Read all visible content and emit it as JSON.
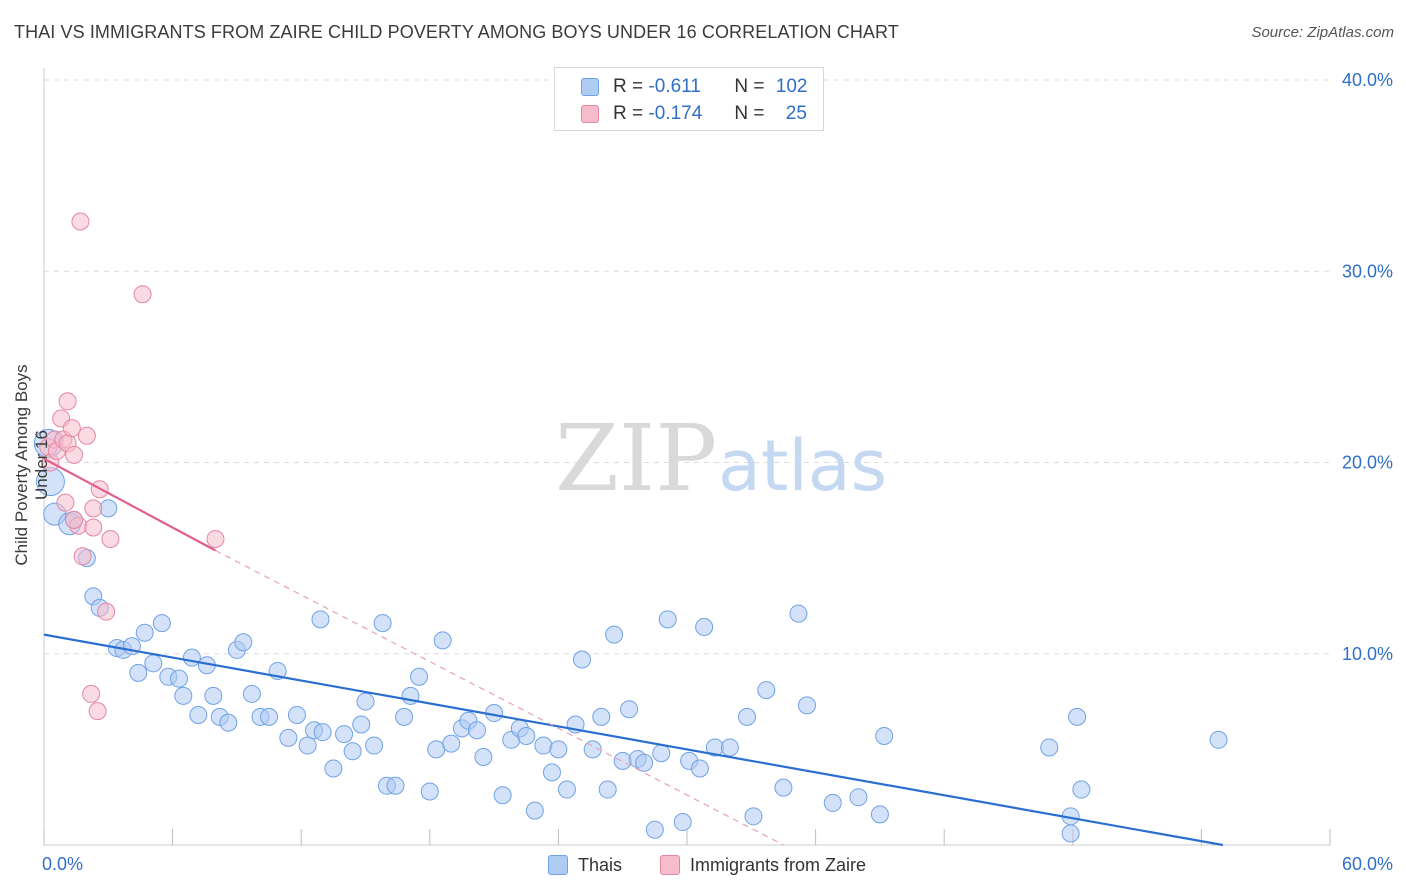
{
  "title": "THAI VS IMMIGRANTS FROM ZAIRE CHILD POVERTY AMONG BOYS UNDER 16 CORRELATION CHART",
  "source": "Source: ZipAtlas.com",
  "watermark": {
    "zip": "ZIP",
    "atlas": "atlas"
  },
  "legend_top": {
    "rows": [
      {
        "r_label": "R =",
        "r_value": "-0.611",
        "n_label": "N =",
        "n_value": "102",
        "color": "#aecbf2"
      },
      {
        "r_label": "R =",
        "r_value": "-0.174",
        "n_label": "N =",
        "n_value": "25",
        "color": "#f6bccc"
      }
    ]
  },
  "legend_bottom": {
    "items": [
      {
        "label": "Thais",
        "color": "#aecbf2"
      },
      {
        "label": "Immigrants from Zaire",
        "color": "#f6bccc"
      }
    ]
  },
  "chart_data": {
    "type": "scatter",
    "title": "THAI VS IMMIGRANTS FROM ZAIRE CHILD POVERTY AMONG BOYS UNDER 16 CORRELATION CHART",
    "xlabel": "",
    "ylabel": "Child Poverty Among Boys Under 16",
    "xlim": [
      0,
      60
    ],
    "ylim": [
      0,
      40
    ],
    "x_tick_labels": [
      "0.0%",
      "60.0%"
    ],
    "y_ticks": [
      10,
      20,
      30,
      40
    ],
    "y_tick_labels": [
      "10.0%",
      "20.0%",
      "30.0%",
      "40.0%"
    ],
    "grid": true,
    "legend_placement": "top-center",
    "series": [
      {
        "name": "Thais",
        "color": "#6fa3e6",
        "fill": "#aecbf2",
        "trend": {
          "x0": 0,
          "y0": 11.0,
          "x1": 55,
          "y1": 0
        },
        "points": [
          [
            0.2,
            21.0
          ],
          [
            0.3,
            19.0
          ],
          [
            0.5,
            17.3
          ],
          [
            1.2,
            16.8
          ],
          [
            1.4,
            17.0
          ],
          [
            2.0,
            15.0
          ],
          [
            3.0,
            17.6
          ],
          [
            2.3,
            13.0
          ],
          [
            2.6,
            12.4
          ],
          [
            3.4,
            10.3
          ],
          [
            3.7,
            10.2
          ],
          [
            4.1,
            10.4
          ],
          [
            4.4,
            9.0
          ],
          [
            4.7,
            11.1
          ],
          [
            5.1,
            9.5
          ],
          [
            5.5,
            11.6
          ],
          [
            5.8,
            8.8
          ],
          [
            6.3,
            8.7
          ],
          [
            6.5,
            7.8
          ],
          [
            6.9,
            9.8
          ],
          [
            7.2,
            6.8
          ],
          [
            7.6,
            9.4
          ],
          [
            7.9,
            7.8
          ],
          [
            8.2,
            6.7
          ],
          [
            8.6,
            6.4
          ],
          [
            9.0,
            10.2
          ],
          [
            9.3,
            10.6
          ],
          [
            9.7,
            7.9
          ],
          [
            10.1,
            6.7
          ],
          [
            10.5,
            6.7
          ],
          [
            10.9,
            9.1
          ],
          [
            11.4,
            5.6
          ],
          [
            11.8,
            6.8
          ],
          [
            12.3,
            5.2
          ],
          [
            12.6,
            6.0
          ],
          [
            13.0,
            5.9
          ],
          [
            13.5,
            4.0
          ],
          [
            12.9,
            11.8
          ],
          [
            14.0,
            5.8
          ],
          [
            14.4,
            4.9
          ],
          [
            14.8,
            6.3
          ],
          [
            15.0,
            7.5
          ],
          [
            15.4,
            5.2
          ],
          [
            15.8,
            11.6
          ],
          [
            16.0,
            3.1
          ],
          [
            16.4,
            3.1
          ],
          [
            16.8,
            6.7
          ],
          [
            17.1,
            7.8
          ],
          [
            17.5,
            8.8
          ],
          [
            18.0,
            2.8
          ],
          [
            18.3,
            5.0
          ],
          [
            18.6,
            10.7
          ],
          [
            19.0,
            5.3
          ],
          [
            19.5,
            6.1
          ],
          [
            19.8,
            6.5
          ],
          [
            20.2,
            6.0
          ],
          [
            20.5,
            4.6
          ],
          [
            21.0,
            6.9
          ],
          [
            21.4,
            2.6
          ],
          [
            21.8,
            5.5
          ],
          [
            22.2,
            6.1
          ],
          [
            22.5,
            5.7
          ],
          [
            22.9,
            1.8
          ],
          [
            23.3,
            5.2
          ],
          [
            23.7,
            3.8
          ],
          [
            24.0,
            5.0
          ],
          [
            24.4,
            2.9
          ],
          [
            24.8,
            6.3
          ],
          [
            25.1,
            9.7
          ],
          [
            25.6,
            5.0
          ],
          [
            26.0,
            6.7
          ],
          [
            26.3,
            2.9
          ],
          [
            26.6,
            11.0
          ],
          [
            27.0,
            4.4
          ],
          [
            27.3,
            7.1
          ],
          [
            27.7,
            4.5
          ],
          [
            28.0,
            4.3
          ],
          [
            28.5,
            0.8
          ],
          [
            28.8,
            4.8
          ],
          [
            29.1,
            11.8
          ],
          [
            29.8,
            1.2
          ],
          [
            30.1,
            4.4
          ],
          [
            30.6,
            4.0
          ],
          [
            30.8,
            11.4
          ],
          [
            31.3,
            5.1
          ],
          [
            32.0,
            5.1
          ],
          [
            32.8,
            6.7
          ],
          [
            33.1,
            1.5
          ],
          [
            33.7,
            8.1
          ],
          [
            34.5,
            3.0
          ],
          [
            35.2,
            12.1
          ],
          [
            35.6,
            7.3
          ],
          [
            36.8,
            2.2
          ],
          [
            38.0,
            2.5
          ],
          [
            39.0,
            1.6
          ],
          [
            39.2,
            5.7
          ],
          [
            46.9,
            5.1
          ],
          [
            47.9,
            1.5
          ],
          [
            47.9,
            0.6
          ],
          [
            48.2,
            6.7
          ],
          [
            48.4,
            2.9
          ],
          [
            54.8,
            5.5
          ]
        ]
      },
      {
        "name": "Immigrants from Zaire",
        "color": "#e487a5",
        "fill": "#f6bccc",
        "trend": {
          "x0": 0,
          "y0": 20.2,
          "x1": 8,
          "y1": 15.4
        },
        "trend_ext": {
          "x0": 8,
          "y0": 15.4,
          "x1": 34.5,
          "y1": 0
        },
        "points": [
          [
            0.2,
            20.8
          ],
          [
            0.3,
            20.0
          ],
          [
            0.5,
            21.2
          ],
          [
            0.6,
            20.6
          ],
          [
            0.8,
            22.3
          ],
          [
            0.9,
            21.2
          ],
          [
            1.0,
            17.9
          ],
          [
            1.1,
            21.0
          ],
          [
            1.1,
            23.2
          ],
          [
            1.3,
            21.8
          ],
          [
            1.4,
            20.4
          ],
          [
            1.6,
            16.7
          ],
          [
            1.7,
            32.6
          ],
          [
            1.8,
            15.1
          ],
          [
            2.0,
            21.4
          ],
          [
            2.3,
            17.6
          ],
          [
            2.3,
            16.6
          ],
          [
            2.6,
            18.6
          ],
          [
            2.9,
            12.2
          ],
          [
            3.1,
            16.0
          ],
          [
            2.2,
            7.9
          ],
          [
            2.5,
            7.0
          ],
          [
            4.6,
            28.8
          ],
          [
            8.0,
            16.0
          ],
          [
            1.4,
            17.0
          ]
        ]
      }
    ]
  }
}
